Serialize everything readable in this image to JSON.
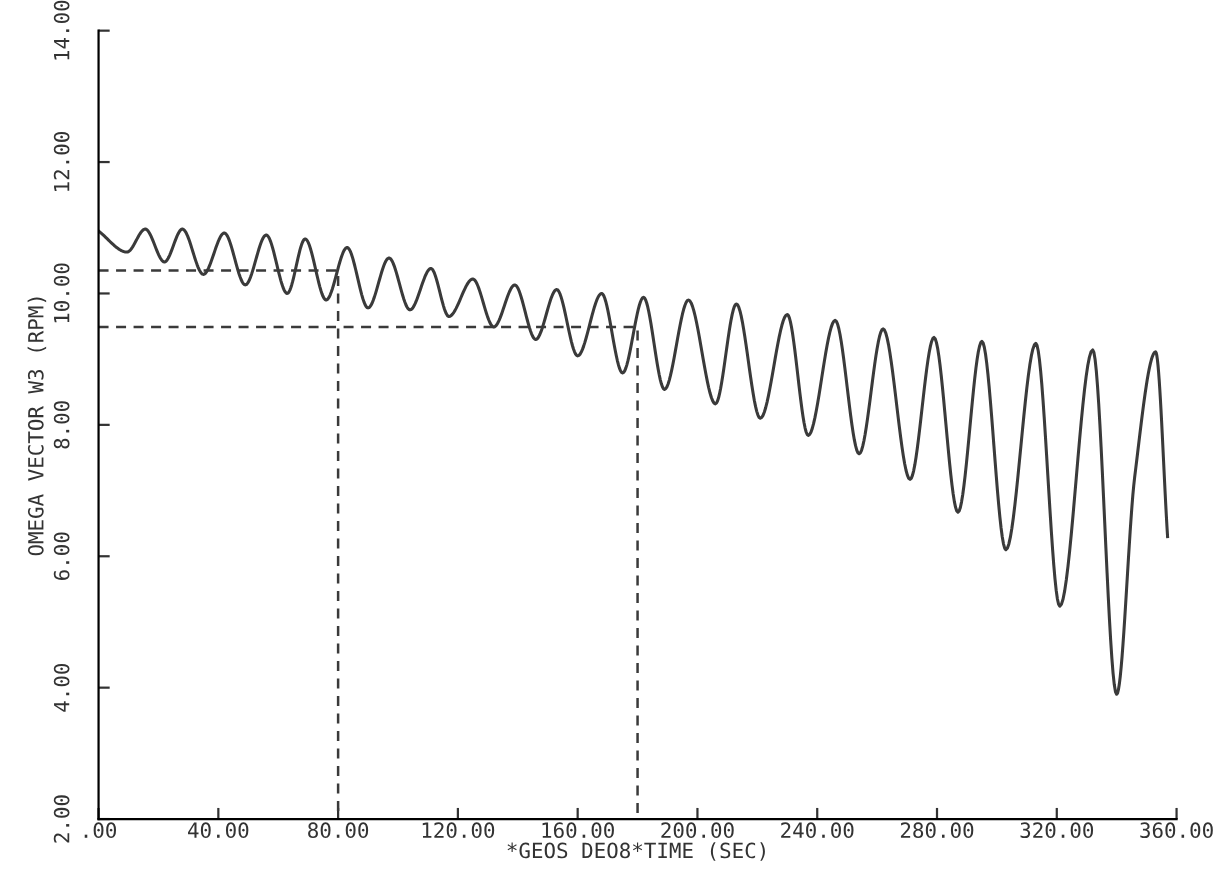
{
  "chart_data": {
    "type": "line",
    "xlabel": "*GEOS DEO8*TIME (SEC)",
    "ylabel": "OMEGA VECTOR W3 (RPM)",
    "xlim": [
      0,
      360
    ],
    "ylim": [
      2,
      14
    ],
    "xticks": [
      {
        "value": 0,
        "label": ".00"
      },
      {
        "value": 40,
        "label": "40.00"
      },
      {
        "value": 80,
        "label": "80.00"
      },
      {
        "value": 120,
        "label": "120.00"
      },
      {
        "value": 160,
        "label": "160.00"
      },
      {
        "value": 200,
        "label": "200.00"
      },
      {
        "value": 240,
        "label": "240.00"
      },
      {
        "value": 280,
        "label": "280.00"
      },
      {
        "value": 320,
        "label": "320.00"
      },
      {
        "value": 360,
        "label": "360.00"
      }
    ],
    "yticks": [
      {
        "value": 2,
        "label": "2.00"
      },
      {
        "value": 4,
        "label": "4.00"
      },
      {
        "value": 6,
        "label": "6.00"
      },
      {
        "value": 8,
        "label": "8.00"
      },
      {
        "value": 10,
        "label": "10.00"
      },
      {
        "value": 12,
        "label": "12.00"
      },
      {
        "value": 14,
        "label": "14.00"
      }
    ],
    "grid": false,
    "legend": false,
    "marker": "none",
    "series": [
      {
        "color": "#3a3a3a",
        "line_style": "solid",
        "x": [
          0,
          9.5,
          15.6,
          22,
          28,
          35,
          42,
          49,
          56,
          63,
          69,
          76,
          83,
          90,
          97,
          104,
          111,
          117,
          125,
          132,
          139,
          146,
          153,
          160,
          168,
          175,
          182,
          189,
          197,
          206,
          213,
          221,
          230,
          237,
          246,
          254,
          262,
          271,
          279,
          287,
          295,
          303,
          313,
          321,
          332,
          340,
          346,
          353,
          357
        ],
        "values": [
          10.95,
          10.63,
          10.98,
          10.48,
          10.98,
          10.29,
          10.92,
          10.13,
          10.89,
          10.0,
          10.83,
          9.9,
          10.7,
          9.78,
          10.54,
          9.75,
          10.38,
          9.65,
          10.22,
          9.49,
          10.13,
          9.3,
          10.06,
          9.05,
          10.0,
          8.79,
          9.94,
          8.54,
          9.9,
          8.32,
          9.84,
          8.1,
          9.68,
          7.84,
          9.59,
          7.56,
          9.46,
          7.17,
          9.33,
          6.67,
          9.27,
          6.1,
          9.24,
          5.24,
          9.14,
          3.9,
          7.2,
          9.11,
          6.3
        ]
      },
      {
        "color": "#3a3a3a",
        "line_style": "dashed",
        "x": [
          0,
          80,
          80
        ],
        "values": [
          10.35,
          10.35,
          2
        ]
      },
      {
        "color": "#3a3a3a",
        "line_style": "dashed",
        "x": [
          0,
          180,
          180
        ],
        "values": [
          9.49,
          9.49,
          2
        ]
      }
    ]
  }
}
